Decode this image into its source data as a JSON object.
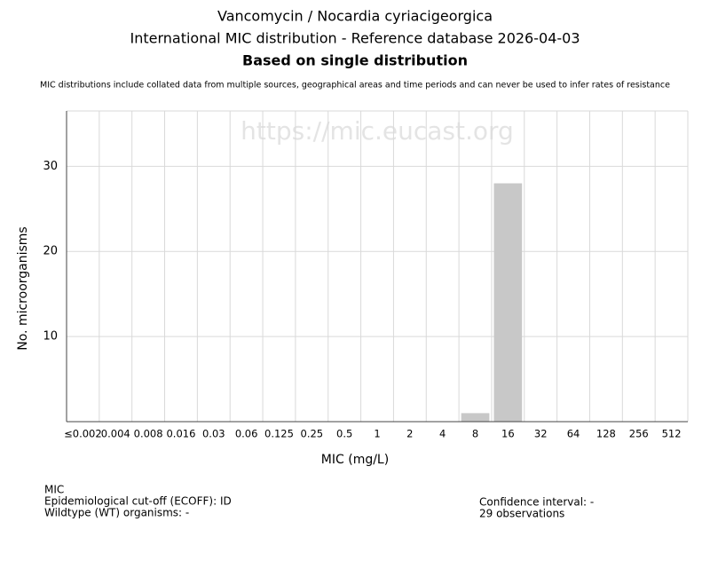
{
  "chart_data": {
    "type": "bar",
    "title": "Vancomycin / Nocardia cyriacigeorgica",
    "subtitle": "International MIC distribution - Reference database 2026-04-03",
    "heading": "Based on single distribution",
    "note": "MIC distributions include collated data from multiple sources, geographical areas and time periods and can never be used to infer rates of resistance",
    "watermark": "https://mic.eucast.org",
    "xlabel": "MIC (mg/L)",
    "ylabel": "No. microorganisms",
    "categories": [
      "≤0.002",
      "0.004",
      "0.008",
      "0.016",
      "0.03",
      "0.06",
      "0.125",
      "0.25",
      "0.5",
      "1",
      "2",
      "4",
      "8",
      "16",
      "32",
      "64",
      "128",
      "256",
      "512"
    ],
    "values": [
      0,
      0,
      0,
      0,
      0,
      0,
      0,
      0,
      0,
      0,
      0,
      0,
      1,
      28,
      0,
      0,
      0,
      0,
      0
    ],
    "color": "#c8c8c8",
    "ylim": [
      0,
      36.5
    ],
    "yticks": [
      10,
      20,
      30
    ],
    "grid": true,
    "info": [
      "MIC",
      "Epidemiological cut-off (ECOFF): ID",
      "Wildtype (WT) organisms:  -"
    ],
    "info_right": [
      "Confidence interval: -",
      "29 observations"
    ]
  }
}
